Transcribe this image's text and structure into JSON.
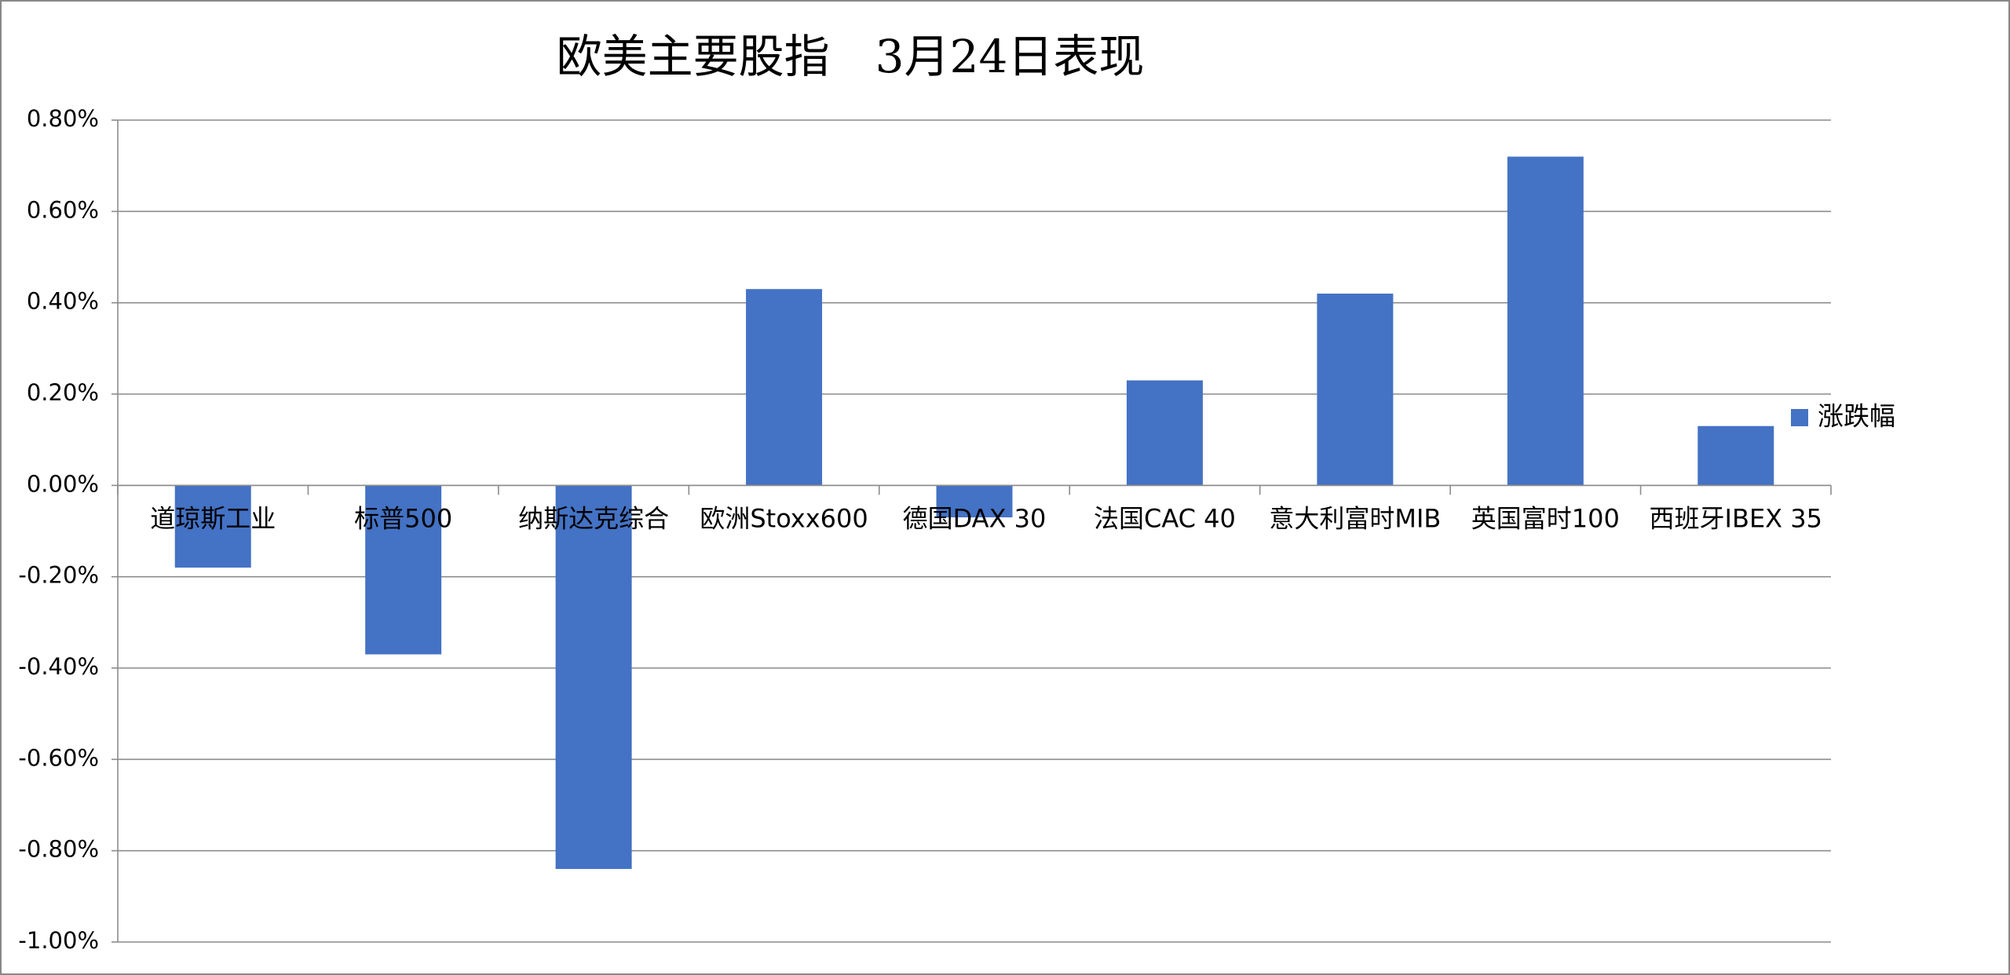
{
  "chart_data": {
    "type": "bar",
    "title": "欧美主要股指　3月24日表现",
    "categories": [
      "道琼斯工业",
      "标普500",
      "纳斯达克综合",
      "欧洲Stoxx600",
      "德国DAX 30",
      "法国CAC 40",
      "意大利富时MIB",
      "英国富时100",
      "西班牙IBEX 35"
    ],
    "series": [
      {
        "name": "涨跌幅",
        "color": "#4472c4",
        "values": [
          -0.18,
          -0.37,
          -0.84,
          0.43,
          -0.07,
          0.23,
          0.42,
          0.72,
          0.13
        ]
      }
    ],
    "ylim": [
      -1.0,
      0.8
    ],
    "yticks": [
      {
        "value": -1.0,
        "label": "-1.00%"
      },
      {
        "value": -0.8,
        "label": "-0.80%"
      },
      {
        "value": -0.6,
        "label": "-0.60%"
      },
      {
        "value": -0.4,
        "label": "-0.40%"
      },
      {
        "value": -0.2,
        "label": "-0.20%"
      },
      {
        "value": 0,
        "label": "0.00%"
      },
      {
        "value": 0.2,
        "label": "0.20%"
      },
      {
        "value": 0.4,
        "label": "0.40%"
      },
      {
        "value": 0.6,
        "label": "0.60%"
      },
      {
        "value": 0.8,
        "label": "0.80%"
      }
    ],
    "grid": true,
    "legend": "right"
  }
}
